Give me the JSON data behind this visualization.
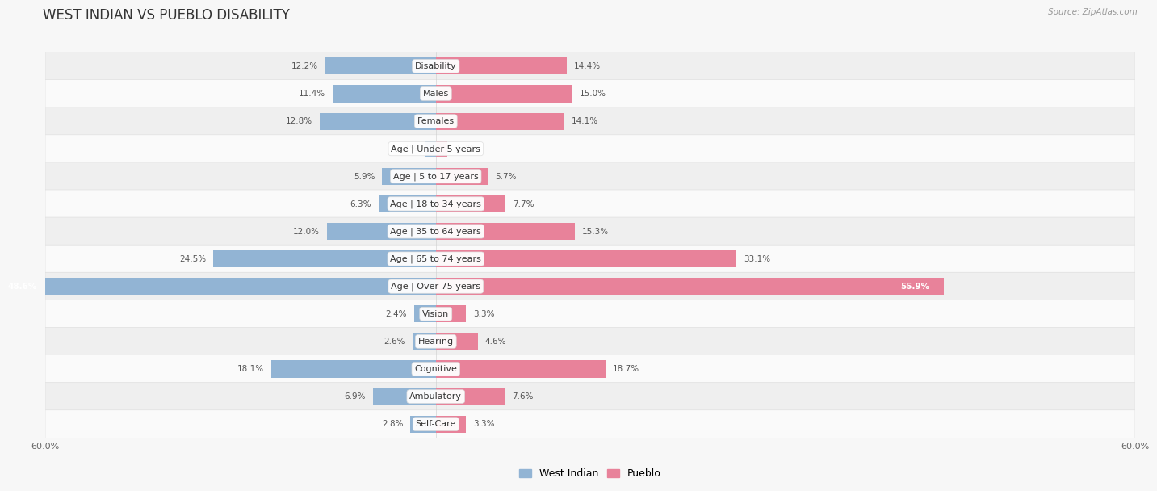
{
  "title": "WEST INDIAN VS PUEBLO DISABILITY",
  "source": "Source: ZipAtlas.com",
  "categories": [
    "Disability",
    "Males",
    "Females",
    "Age | Under 5 years",
    "Age | 5 to 17 years",
    "Age | 18 to 34 years",
    "Age | 35 to 64 years",
    "Age | 65 to 74 years",
    "Age | Over 75 years",
    "Vision",
    "Hearing",
    "Cognitive",
    "Ambulatory",
    "Self-Care"
  ],
  "west_indian": [
    12.2,
    11.4,
    12.8,
    1.1,
    5.9,
    6.3,
    12.0,
    24.5,
    48.6,
    2.4,
    2.6,
    18.1,
    6.9,
    2.8
  ],
  "pueblo": [
    14.4,
    15.0,
    14.1,
    1.3,
    5.7,
    7.7,
    15.3,
    33.1,
    55.9,
    3.3,
    4.6,
    18.7,
    7.6,
    3.3
  ],
  "west_indian_color": "#92b4d4",
  "pueblo_color": "#e8829a",
  "west_indian_label": "West Indian",
  "pueblo_label": "Pueblo",
  "max_val": 60.0,
  "bg_color": "#f7f7f7",
  "row_colors": [
    "#efefef",
    "#fafafa"
  ],
  "row_border_color": "#e0e0e0",
  "title_fontsize": 12,
  "label_fontsize": 8,
  "value_fontsize": 7.5,
  "axis_label_fontsize": 8,
  "bar_height": 0.62
}
